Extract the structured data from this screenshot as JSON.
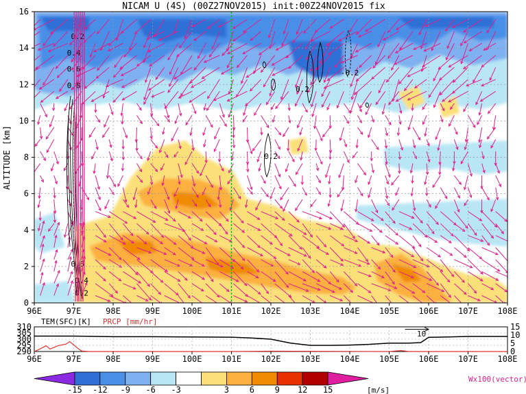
{
  "title": "NICAM U (4S) (00Z27NOV2015) init:00Z24NOV2015 fix",
  "colors": {
    "levels": [
      "#8a2be2",
      "#2f6fd6",
      "#4a8fe8",
      "#7fb0ef",
      "#b8e6f5",
      "#ffffff",
      "#fbe07a",
      "#fbb040",
      "#f08a00",
      "#e83000",
      "#b00000",
      "#e01fa0"
    ],
    "vector": "#e01f8c",
    "contour": "#000000",
    "marker_line": "#10c020",
    "precip": "#e03030",
    "temp": "#000000"
  },
  "chart_data": [
    {
      "type": "heatmap",
      "title": "NICAM U (4S) (00Z27NOV2015) init:00Z24NOV2015 fix",
      "ylabel": "ALTITUDE [km]",
      "xlim": [
        96,
        108
      ],
      "ylim": [
        0,
        16
      ],
      "x_ticks": [
        "96E",
        "97E",
        "98E",
        "99E",
        "100E",
        "101E",
        "102E",
        "103E",
        "104E",
        "105E",
        "106E",
        "107E",
        "108E"
      ],
      "y_ticks": [
        "0",
        "2",
        "4",
        "6",
        "8",
        "10",
        "12",
        "14",
        "16"
      ],
      "grid": true,
      "marker_lon": 101,
      "contour_labels": [
        {
          "text": "0.2",
          "x": 97.1,
          "y": 14.5
        },
        {
          "text": "0.4",
          "x": 97.0,
          "y": 13.6
        },
        {
          "text": "0.6",
          "x": 97.0,
          "y": 12.7
        },
        {
          "text": "0.8",
          "x": 97.0,
          "y": 11.8
        },
        {
          "text": "0.2",
          "x": 102.0,
          "y": 7.9
        },
        {
          "text": "0.2",
          "x": 102.8,
          "y": 11.6
        },
        {
          "text": "-0.2",
          "x": 104.0,
          "y": 12.5
        },
        {
          "text": "0.6",
          "x": 97.1,
          "y": 2.0
        },
        {
          "text": "0.4",
          "x": 97.2,
          "y": 1.1
        },
        {
          "text": "0.2",
          "x": 97.2,
          "y": 0.4
        }
      ]
    },
    {
      "type": "line",
      "xlim": [
        96,
        108
      ],
      "x_ticks": [
        "96E",
        "97E",
        "98E",
        "99E",
        "100E",
        "101E",
        "102E",
        "103E",
        "104E",
        "105E",
        "106E",
        "107E",
        "108E"
      ],
      "left_axis_label": "TEM(SFC)[K]",
      "left_ticks": [
        "310",
        "305",
        "300",
        "295",
        "290"
      ],
      "left_ylim": [
        290,
        310
      ],
      "right_axis_label": "PRCP [mm/hr]",
      "right_ticks": [
        "15",
        "10",
        "5",
        "0"
      ],
      "right_ylim": [
        0,
        15
      ],
      "annotation": "10",
      "series": [
        {
          "name": "TEM(SFC)[K]",
          "color": "#000000",
          "x": [
            96,
            96.5,
            97,
            97.5,
            98,
            99,
            100,
            101,
            101.5,
            102,
            102.5,
            103,
            103.5,
            104,
            104.5,
            105,
            105.5,
            105.8,
            106,
            106.5,
            107,
            108
          ],
          "values": [
            302.5,
            302.5,
            302.5,
            302.3,
            302.0,
            302.0,
            301.8,
            301.6,
            301.0,
            300.0,
            296.8,
            295.0,
            295.0,
            295.2,
            295.8,
            296.8,
            296.8,
            297.2,
            301.5,
            301.8,
            302.2,
            302.2
          ]
        },
        {
          "name": "PRCP [mm/hr]",
          "color": "#e03030",
          "x": [
            96,
            96.1,
            96.3,
            96.4,
            96.6,
            96.8,
            96.9,
            97.1,
            97.2,
            97.4,
            98,
            101,
            102,
            105,
            105.3,
            105.5,
            106,
            108
          ],
          "values": [
            0,
            1.0,
            3.5,
            1.5,
            3.5,
            4.5,
            6.0,
            2.0,
            0.3,
            0,
            0,
            0,
            0.2,
            0,
            0.6,
            0,
            0,
            0
          ]
        }
      ]
    },
    {
      "type": "colorbar",
      "tick_labels": [
        "-15",
        "-12",
        "-9",
        "-6",
        "-3",
        "3",
        "6",
        "9",
        "12",
        "15"
      ],
      "units": "[m/s]",
      "vector_label": "Wx100(vector)"
    }
  ]
}
